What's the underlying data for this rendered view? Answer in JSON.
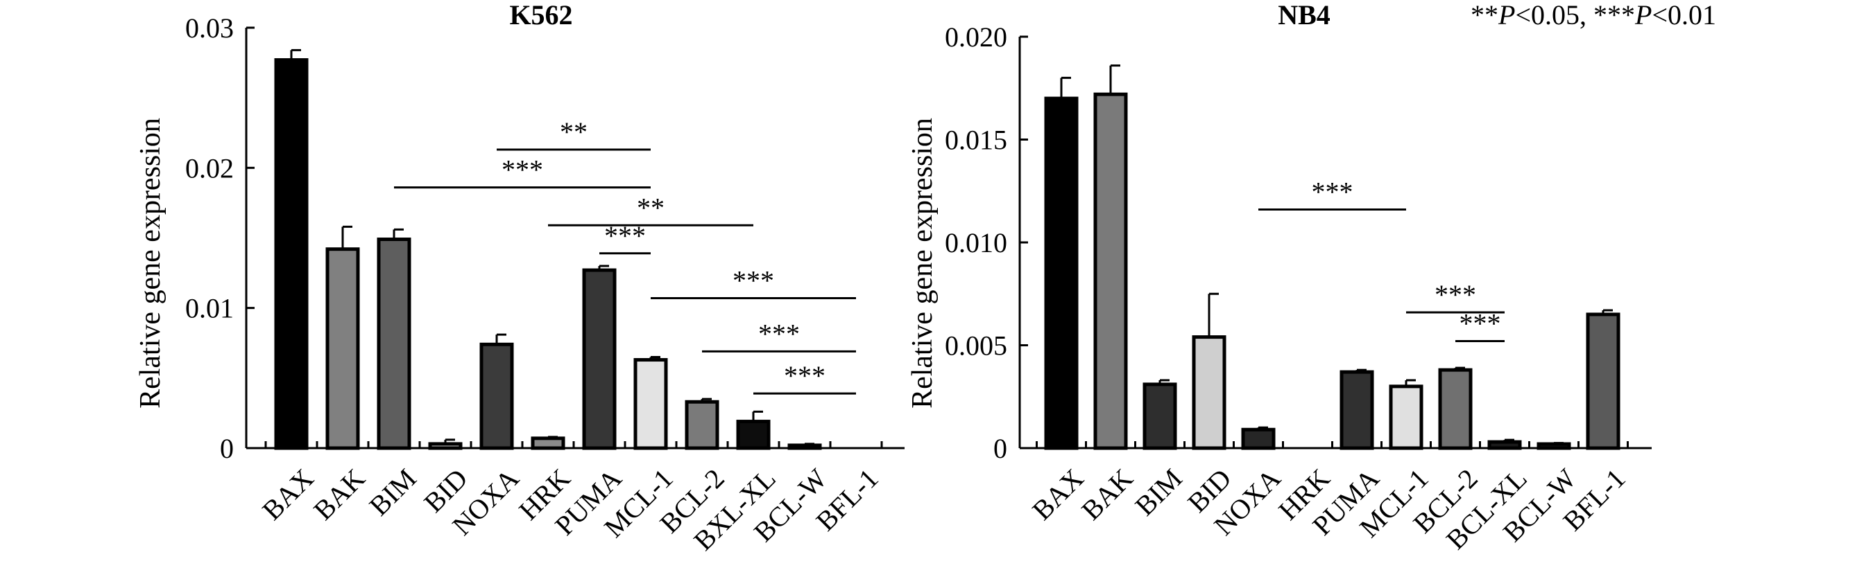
{
  "significance_note": {
    "prefix_1": "**",
    "p_1": "P",
    "suffix_1": "<0.05, ",
    "prefix_2": "***",
    "p_2": "P",
    "suffix_2": "<0.01"
  },
  "chart_data": [
    {
      "type": "bar",
      "title": "K562",
      "ylabel": "Relative gene expression",
      "xlabel": "",
      "ylim": [
        0,
        0.03
      ],
      "yticks": [
        0,
        0.01,
        0.02,
        0.03
      ],
      "ytick_labels": [
        "0",
        "0.01",
        "0.02",
        "0.03"
      ],
      "categories": [
        "BAX",
        "BAK",
        "BIM",
        "BID",
        "NOXA",
        "HRK",
        "PUMA",
        "MCL-1",
        "BCL-2",
        "BXL-XL",
        "BCL-W",
        "BFL-1"
      ],
      "values": [
        0.0277,
        0.0142,
        0.0149,
        0.0003,
        0.0074,
        0.0007,
        0.0127,
        0.0063,
        0.0033,
        0.0019,
        0.0002,
        0
      ],
      "errors": [
        0.0007,
        0.0016,
        0.0007,
        0.0003,
        0.0007,
        0.0001,
        0.0003,
        0.0002,
        0.0002,
        0.0007,
        0.0001,
        0
      ],
      "colors": [
        "#000000",
        "#808080",
        "#5e5e5e",
        "#bdbdbd",
        "#3b3b3b",
        "#8a8a8a",
        "#363636",
        "#e3e3e3",
        "#7a7a7a",
        "#0d0d0d",
        "#c9c9c9",
        "#ffffff"
      ],
      "significance": [
        {
          "from": "NOXA",
          "to": "MCL-1",
          "y": 0.0213,
          "label": "**"
        },
        {
          "from": "BIM",
          "to": "MCL-1",
          "y": 0.0186,
          "label": "***"
        },
        {
          "from": "HRK",
          "to": "BXL-XL",
          "y": 0.0159,
          "label": "**"
        },
        {
          "from": "PUMA",
          "to": "MCL-1",
          "y": 0.0139,
          "label": "***"
        },
        {
          "from": "MCL-1",
          "to": "BFL-1",
          "y": 0.0107,
          "label": "***"
        },
        {
          "from": "BCL-2",
          "to": "BFL-1",
          "y": 0.0069,
          "label": "***"
        },
        {
          "from": "BXL-XL",
          "to": "BFL-1",
          "y": 0.0039,
          "label": "***"
        }
      ]
    },
    {
      "type": "bar",
      "title": "NB4",
      "ylabel": "Relative gene expression",
      "xlabel": "",
      "ylim": [
        0,
        0.02
      ],
      "yticks": [
        0,
        0.005,
        0.01,
        0.015,
        0.02
      ],
      "ytick_labels": [
        "0",
        "0.005",
        "0.010",
        "0.015",
        "0.020"
      ],
      "categories": [
        "BAX",
        "BAK",
        "BIM",
        "BID",
        "NOXA",
        "HRK",
        "PUMA",
        "MCL-1",
        "BCL-2",
        "BCL-XL",
        "BCL-W",
        "BFL-1"
      ],
      "values": [
        0.017,
        0.0172,
        0.0031,
        0.0054,
        0.0009,
        0,
        0.0037,
        0.003,
        0.0038,
        0.0003,
        0.0002,
        0.0065
      ],
      "errors": [
        0.001,
        0.0014,
        0.0002,
        0.0021,
        0.0001,
        0,
        0.0001,
        0.0003,
        0.0001,
        0.0001,
        5e-05,
        0.0002
      ],
      "colors": [
        "#000000",
        "#7a7a7a",
        "#2e2e2e",
        "#cfcfcf",
        "#262626",
        "#ffffff",
        "#303030",
        "#e0e0e0",
        "#707070",
        "#1a1a1a",
        "#151515",
        "#5a5a5a"
      ],
      "significance": [
        {
          "from": "NOXA",
          "to": "MCL-1",
          "y": 0.0116,
          "label": "***"
        },
        {
          "from": "MCL-1",
          "to": "BCL-XL",
          "y": 0.0066,
          "label": "***"
        },
        {
          "from": "BCL-2",
          "to": "BCL-XL",
          "y": 0.0052,
          "label": "***"
        }
      ]
    }
  ]
}
